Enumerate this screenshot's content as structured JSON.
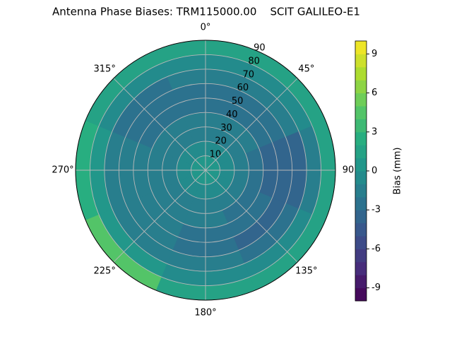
{
  "chart_data": {
    "type": "polar_contour",
    "title": "Antenna Phase Biases: TRM115000.00    SCIT GALILEO-E1",
    "colorbar_label": "Bias (mm)",
    "colormap": "viridis",
    "azimuth": [
      0,
      45,
      90,
      135,
      180,
      225,
      270,
      315
    ],
    "elevation_bins": [
      0,
      10,
      20,
      30,
      40,
      50,
      60,
      70,
      80,
      90
    ],
    "z": [
      [
        0,
        0,
        0,
        0,
        0,
        0,
        0,
        0
      ],
      [
        -1,
        -1,
        -1,
        -1,
        -1,
        -1,
        -1,
        -1
      ],
      [
        -1.5,
        -1.5,
        -2,
        -1.5,
        -1.5,
        -1.5,
        -1.5,
        -1.5
      ],
      [
        -2,
        -2,
        -2.5,
        -2.5,
        -2,
        -1.5,
        -2,
        -2
      ],
      [
        -2.5,
        -2.5,
        -3.5,
        -3,
        -2.5,
        -2,
        -2,
        -2.5
      ],
      [
        -2.5,
        -2.5,
        -4,
        -3.5,
        -2.5,
        -2,
        -2,
        -3
      ],
      [
        -2,
        -2,
        -3.5,
        -3,
        -2,
        -1.5,
        -2,
        -2.5
      ],
      [
        -0.5,
        -0.5,
        -1.5,
        -1,
        -0.5,
        0.5,
        0,
        -1
      ],
      [
        1.5,
        1.5,
        1,
        1.5,
        1.5,
        4,
        2,
        1.5
      ]
    ],
    "zlim": [
      -10,
      10
    ],
    "cticks": [
      -9,
      -6,
      -3,
      0,
      3,
      6,
      9
    ],
    "rlim": [
      0,
      90
    ],
    "rticks": [
      10,
      20,
      30,
      40,
      50,
      60,
      70,
      80,
      90
    ],
    "thetaticks": [
      {
        "value": 0,
        "label": "0°"
      },
      {
        "value": 45,
        "label": "45°"
      },
      90,
      {
        "value": 135,
        "label": "135°"
      },
      {
        "value": 180,
        "label": "180°"
      },
      {
        "value": 225,
        "label": "225°"
      },
      {
        "value": 270,
        "label": "270°"
      },
      {
        "value": 315,
        "label": "315°"
      }
    ],
    "grid": true
  }
}
